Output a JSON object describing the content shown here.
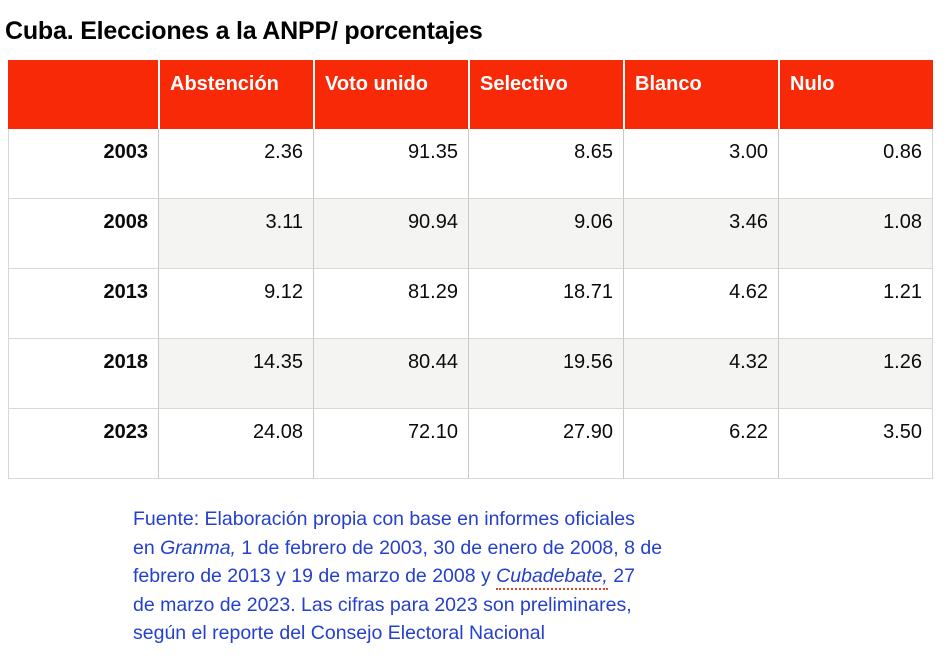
{
  "title": "Cuba. Elecciones a la ANPP/ porcentajes",
  "colors": {
    "header_bg": "#f72906",
    "header_text": "#ffffff",
    "shaded_row_bg": "#f4f4f2",
    "source_text": "#2440cc",
    "spellcheck_underline": "#e2442c",
    "grid_border": "#c9c9c7"
  },
  "table": {
    "columns": [
      "",
      "Abstención",
      "Voto unido",
      "Selectivo",
      "Blanco",
      "Nulo"
    ],
    "rows": [
      {
        "year": "2003",
        "values": [
          "2.36",
          "91.35",
          "8.65",
          "3.00",
          "0.86"
        ],
        "shaded": false
      },
      {
        "year": "2008",
        "values": [
          "3.11",
          "90.94",
          "9.06",
          "3.46",
          "1.08"
        ],
        "shaded": true
      },
      {
        "year": "2013",
        "values": [
          "9.12",
          "81.29",
          "18.71",
          "4.62",
          "1.21"
        ],
        "shaded": false
      },
      {
        "year": "2018",
        "values": [
          "14.35",
          "80.44",
          "19.56",
          "4.32",
          "1.26"
        ],
        "shaded": true
      },
      {
        "year": "2023",
        "values": [
          "24.08",
          "72.10",
          "27.90",
          "6.22",
          "3.50"
        ],
        "shaded": false
      }
    ]
  },
  "footer": {
    "lines": [
      [
        {
          "t": "Fuente: Elaboración propia con base en informes oficiales"
        }
      ],
      [
        {
          "t": "en "
        },
        {
          "t": "Granma,",
          "i": true
        },
        {
          "t": " 1 de febrero de 2003, 30 de enero de 2008, 8 de"
        }
      ],
      [
        {
          "t": "febrero de 2013 y 19 de marzo de 2008 y "
        },
        {
          "t": "Cubadebate,",
          "i": true,
          "u": true
        },
        {
          "t": " 27"
        }
      ],
      [
        {
          "t": "de marzo de 2023. Las cifras para 2023 son preliminares,"
        }
      ],
      [
        {
          "t": "según el reporte del Consejo Electoral Nacional"
        }
      ]
    ]
  },
  "chart_data": {
    "type": "table",
    "title": "Cuba. Elecciones a la ANPP/ porcentajes",
    "categories": [
      "2003",
      "2008",
      "2013",
      "2018",
      "2023"
    ],
    "series": [
      {
        "name": "Abstención",
        "values": [
          2.36,
          3.11,
          9.12,
          14.35,
          24.08
        ]
      },
      {
        "name": "Voto unido",
        "values": [
          91.35,
          90.94,
          81.29,
          80.44,
          72.1
        ]
      },
      {
        "name": "Selectivo",
        "values": [
          8.65,
          9.06,
          18.71,
          19.56,
          27.9
        ]
      },
      {
        "name": "Blanco",
        "values": [
          3.0,
          3.46,
          4.62,
          4.32,
          6.22
        ]
      },
      {
        "name": "Nulo",
        "values": [
          0.86,
          1.08,
          1.21,
          1.26,
          3.5
        ]
      }
    ],
    "units": "percent",
    "source_note": "Fuente: Elaboración propia con base en informes oficiales en Granma, 1 de febrero de 2003, 30 de enero de 2008, 8 de febrero de 2013 y 19 de marzo de 2008 y Cubadebate, 27 de marzo de 2023. Las cifras para 2023 son preliminares, según el reporte del Consejo Electoral Nacional"
  }
}
